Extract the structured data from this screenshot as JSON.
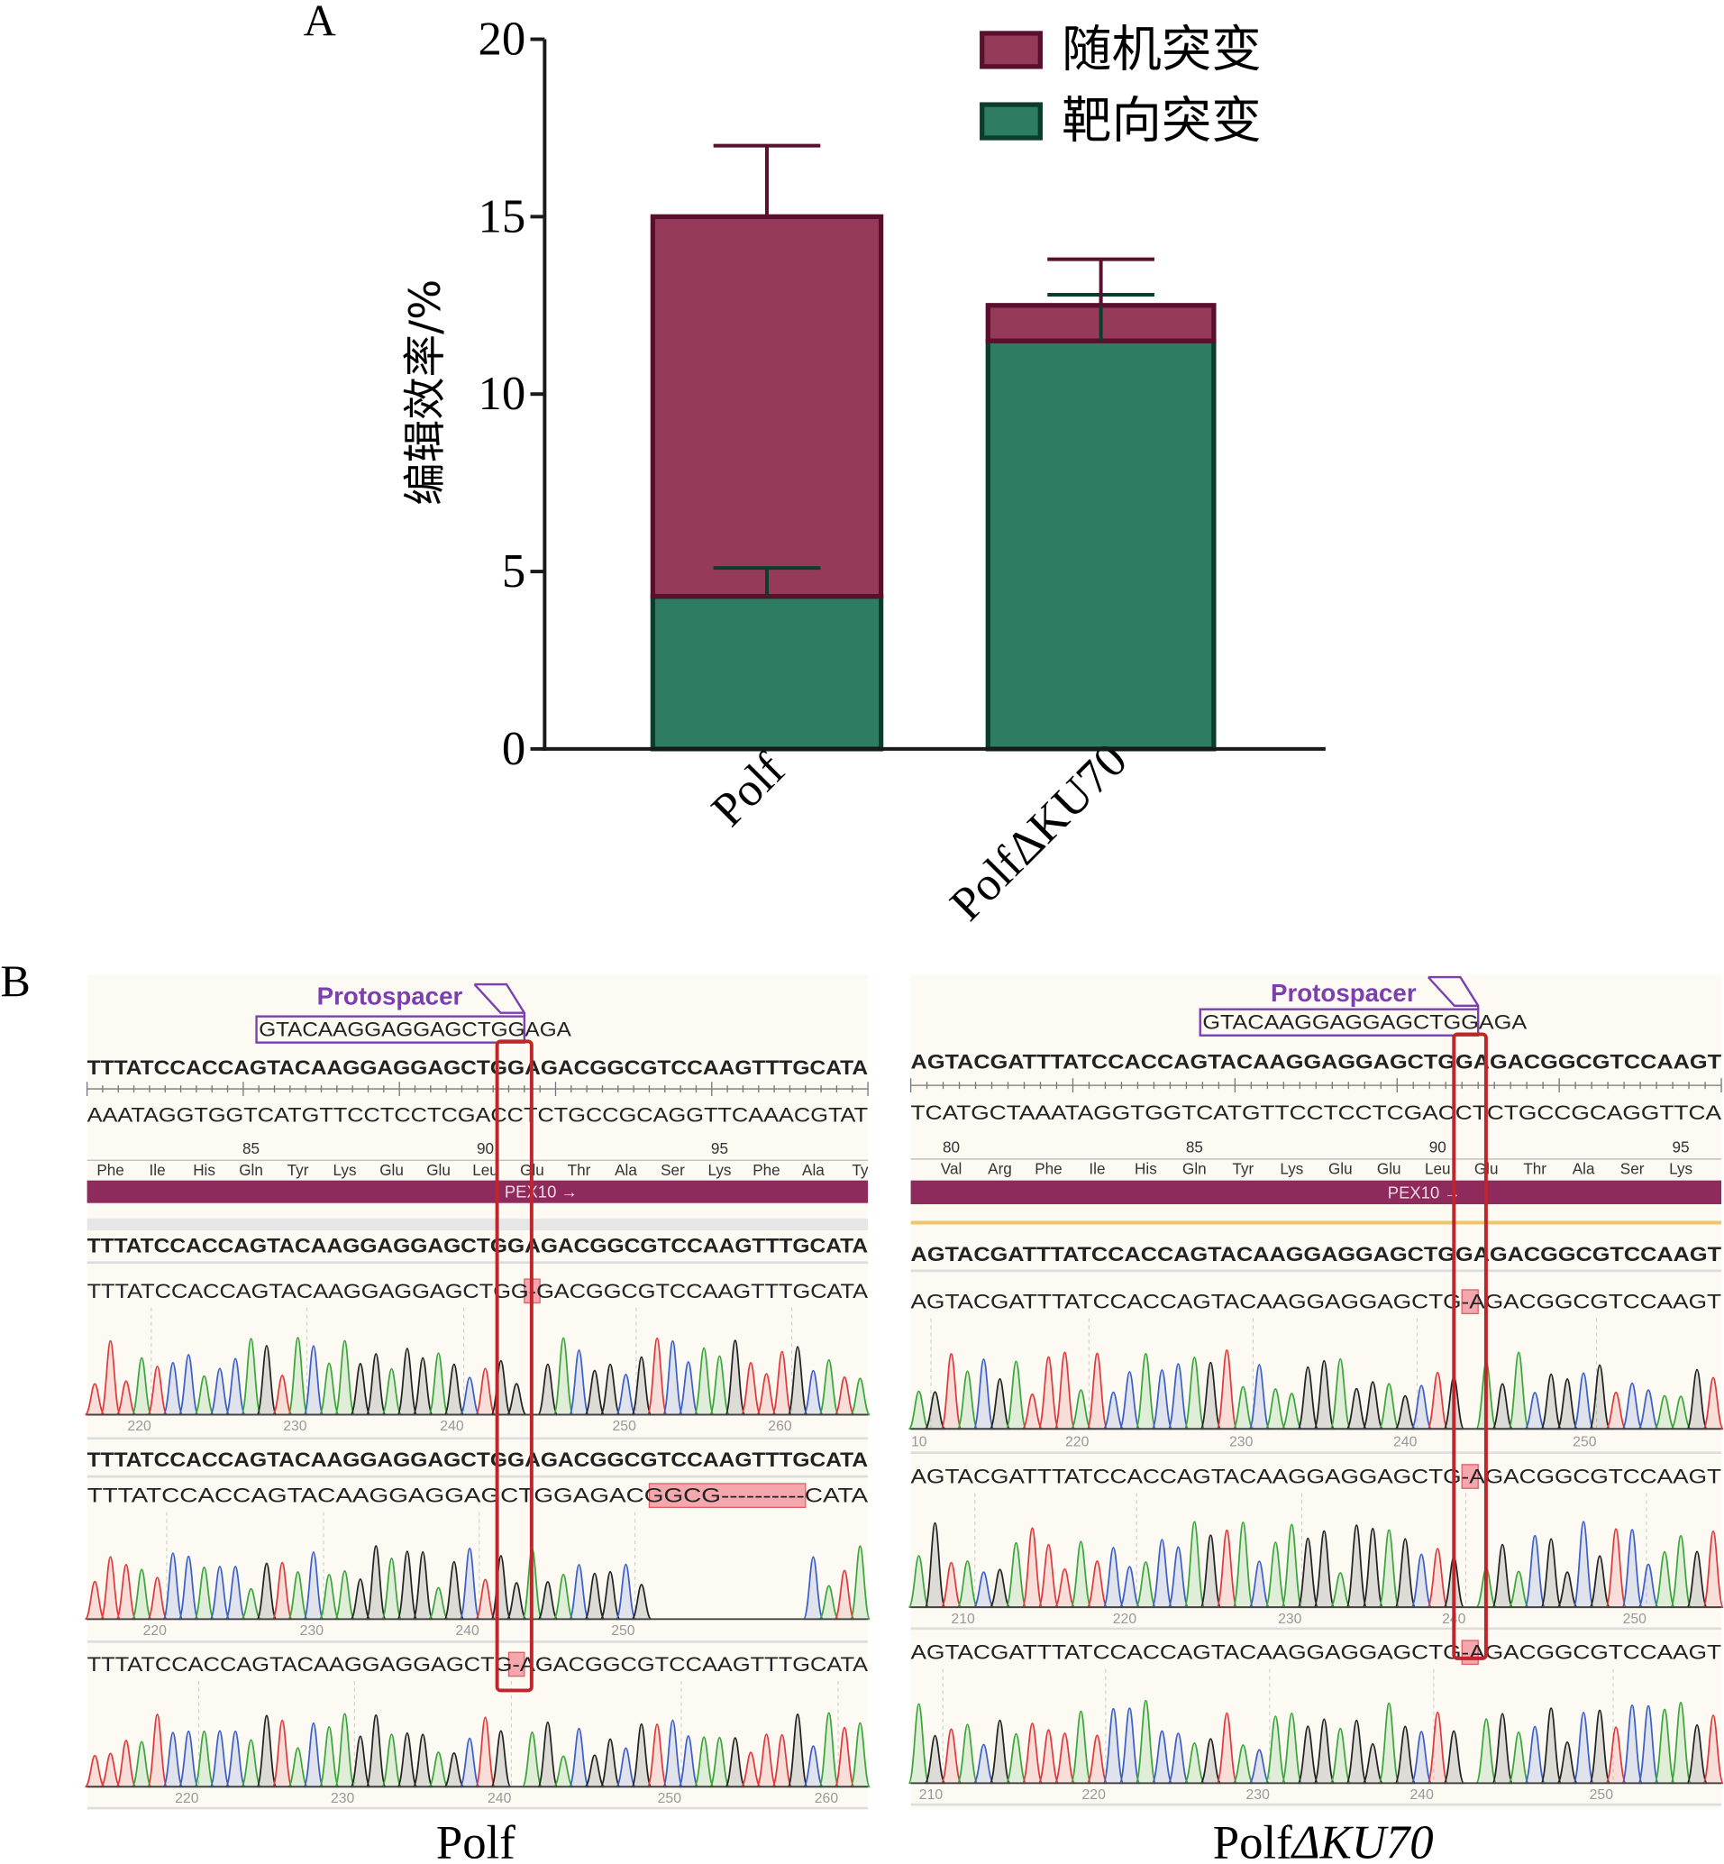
{
  "panel_labels": {
    "a": "A",
    "b": "B"
  },
  "chart_data": {
    "type": "bar",
    "stacked": true,
    "title": "",
    "xlabel": "",
    "ylabel": "编辑效率/%",
    "ylim": [
      0,
      20
    ],
    "yticks": [
      "0",
      "5",
      "10",
      "15",
      "20"
    ],
    "grid": false,
    "legend": "top-right",
    "categories": [
      "Polf",
      "PolfΔKU70"
    ],
    "series": [
      {
        "name": "靶向突变",
        "values": [
          4.3,
          11.5
        ],
        "errors": [
          0.8,
          1.3
        ],
        "color": "#2e7d63",
        "edge": "#0b3d2c"
      },
      {
        "name": "随机突变",
        "values": [
          10.7,
          1.0
        ],
        "errors": [
          2.0,
          1.3
        ],
        "color": "#963a5a",
        "edge": "#5a0f2e"
      }
    ],
    "legend_order": [
      1,
      0
    ]
  },
  "sequencing": {
    "colors": {
      "A": "#3aa63a",
      "C": "#3b5fc8",
      "G": "#222222",
      "T": "#e0393b",
      "gene_bar": "#8e2a5c",
      "protospacer": "#7b3fb0",
      "highlight_box": "#c0252b",
      "deletion": "#f4a7ad"
    },
    "panels": [
      {
        "caption_prefix": "Polf",
        "caption_suffix": "",
        "protospacer_label": "Protospacer",
        "protospacer_seq": "GTACAAGGAGGAGCTGGAGA",
        "reference": "TTTATCCACCAGTACAAGGAGGAGCTGGAGACGGCGTCCAAGTTTGCATA",
        "complement": "AAATAGGTGGTCATGTTCCTCCTCGACCTCTGCCGCAGGTTCAAACGTAT",
        "aa_numbers": [
          "85",
          "90",
          "95"
        ],
        "amino_acids": [
          "Phe",
          "Ile",
          "His",
          "Gln",
          "Tyr",
          "Lys",
          "Glu",
          "Glu",
          "Leu",
          "Glu",
          "Thr",
          "Ala",
          "Ser",
          "Lys",
          "Phe",
          "Ala",
          "Ty"
        ],
        "gene": "PEX10 →",
        "reads": [
          {
            "reference": "TTTATCCACCAGTACAAGGAGGAGCTGGAGACGGCGTCCAAGTTTGCATA",
            "read": "TTTATCCACCAGTACAAGGAGGAGCTGG-GACGGCGTCCAAGTTTGCATA",
            "scale": [
              "220",
              "230",
              "240",
              "250",
              "260"
            ]
          },
          {
            "reference": "TTTATCCACCAGTACAAGGAGGAGCTGGAGACGGCGTCCAAGTTTGCATA",
            "read": "TTTATCCACCAGTACAAGGAGGAGCTGGAGACGGCG----------CATA",
            "scale": [
              "220",
              "230",
              "240",
              "250"
            ]
          },
          {
            "reference": null,
            "read": "TTTATCCACCAGTACAAGGAGGAGCTG-AGACGGCGTCCAAGTTTGCATA",
            "scale": [
              "220",
              "230",
              "240",
              "250",
              "260"
            ]
          }
        ]
      },
      {
        "caption_prefix": "Polf",
        "caption_suffix": "ΔKU70",
        "protospacer_label": "Protospacer",
        "protospacer_seq": "GTACAAGGAGGAGCTGGAGA",
        "reference": "AGTACGATTTATCCACCAGTACAAGGAGGAGCTGGAGACGGCGTCCAAGT",
        "complement": "TCATGCTAAATAGGTGGTCATGTTCCTCCTCGACCTCTGCCGCAGGTTCA",
        "aa_numbers": [
          "80",
          "85",
          "90",
          "95"
        ],
        "amino_acids": [
          "Val",
          "Arg",
          "Phe",
          "Ile",
          "His",
          "Gln",
          "Tyr",
          "Lys",
          "Glu",
          "Glu",
          "Leu",
          "Glu",
          "Thr",
          "Ala",
          "Ser",
          "Lys"
        ],
        "gene": "PEX10 →",
        "reads": [
          {
            "reference": "AGTACGATTTATCCACCAGTACAAGGAGGAGCTGGAGACGGCGTCCAAGT",
            "read": "AGTACGATTTATCCACCAGTACAAGGAGGAGCTG-AGACGGCGTCCAAGT",
            "scale": [
              "10",
              "220",
              "230",
              "240",
              "250"
            ]
          },
          {
            "reference": null,
            "read": "AGTACGATTTATCCACCAGTACAAGGAGGAGCTG-AGACGGCGTCCAAGT",
            "scale": [
              "210",
              "220",
              "230",
              "240",
              "250"
            ]
          },
          {
            "reference": null,
            "read": "AGTACGATTTATCCACCAGTACAAGGAGGAGCTG-AGACGGCGTCCAAGT",
            "scale": [
              "210",
              "220",
              "230",
              "240",
              "250"
            ]
          }
        ]
      }
    ]
  }
}
